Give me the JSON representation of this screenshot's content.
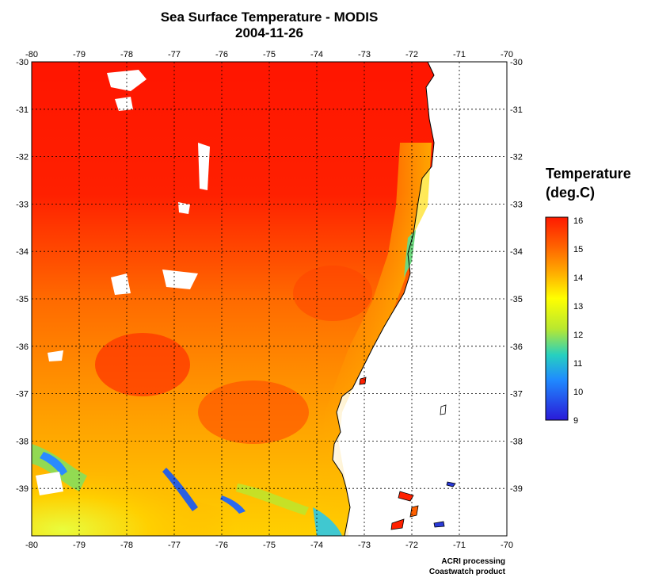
{
  "title": {
    "line1": "Sea Surface Temperature - MODIS",
    "line2": "2004-11-26"
  },
  "axes": {
    "x_ticks": [
      "-80",
      "-79",
      "-78",
      "-77",
      "-76",
      "-75",
      "-74",
      "-73",
      "-72",
      "-71",
      "-70"
    ],
    "y_ticks": [
      "-30",
      "-31",
      "-32",
      "-33",
      "-34",
      "-35",
      "-36",
      "-37",
      "-38",
      "-39"
    ],
    "xlim": [
      -80,
      -70
    ],
    "ylim": [
      -40,
      -30
    ],
    "grid": "dotted"
  },
  "legend": {
    "title_line1": "Temperature",
    "title_line2": "(deg.C)",
    "ticks": [
      "16",
      "15",
      "14",
      "13",
      "12",
      "11",
      "10",
      "9"
    ],
    "range": [
      9,
      16
    ],
    "colors": [
      "#2a1ad8",
      "#1f8bff",
      "#26d0c0",
      "#b8e830",
      "#ffff00",
      "#ffb000",
      "#ff6000",
      "#ff1a00"
    ]
  },
  "credits": {
    "line1": "ACRI processing",
    "line2": "Coastwatch product"
  }
}
